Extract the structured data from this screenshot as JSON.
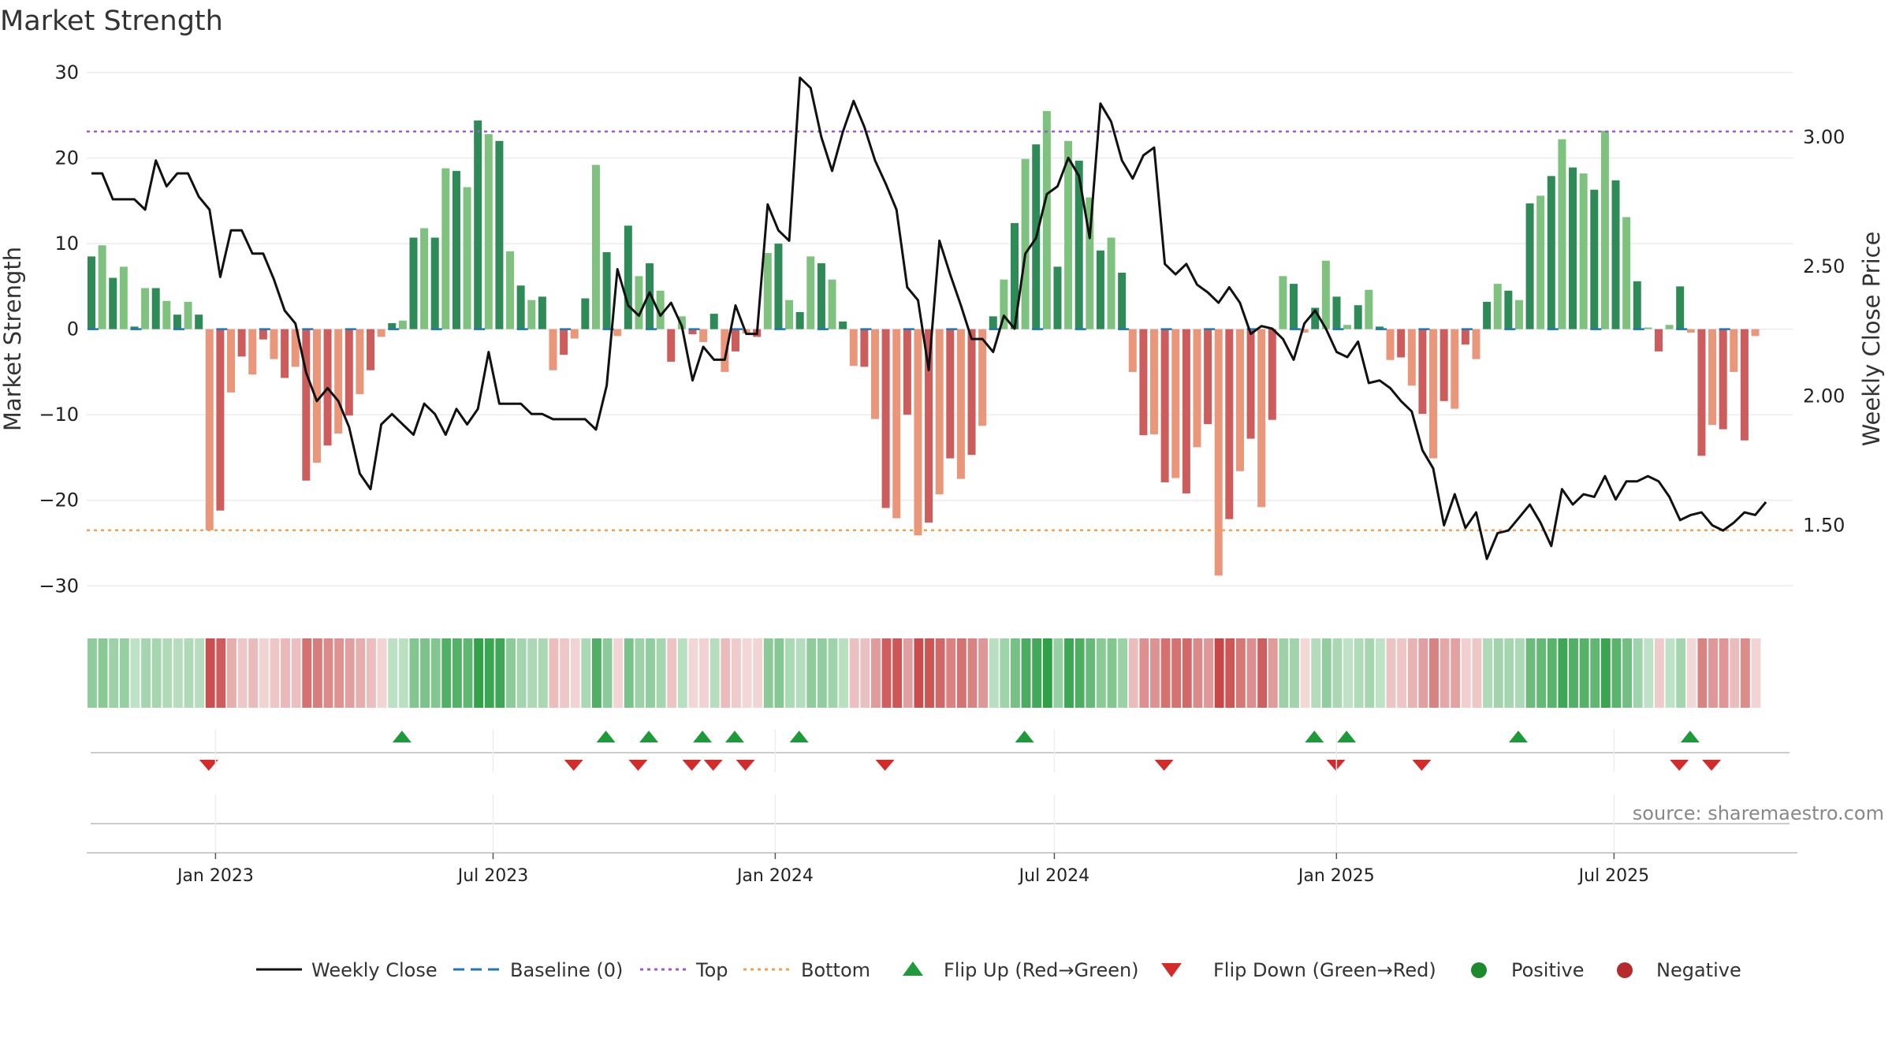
{
  "colors": {
    "pos_dark": "#2e8b57",
    "pos_light": "#7fc27f",
    "neg_dark": "#cd5c5c",
    "neg_light": "#e9967a",
    "top_line": "#9b59d0",
    "bottom_line": "#f0a050",
    "baseline": "#1f77b4",
    "price_line": "#111111",
    "flip_up": "#1e9a3a",
    "flip_down": "#d42a2a",
    "positive_dot": "#1e8a2e",
    "negative_dot": "#b52a2a"
  },
  "chart_data": {
    "type": "bar",
    "title": "Market Strength",
    "ylabel_left": "Market Strength",
    "ylabel_right": "Weekly Close Price",
    "ylim_left": [
      -32,
      30
    ],
    "ylim_right": [
      1.2,
      3.25
    ],
    "yticks_left": [
      30,
      20,
      10,
      0,
      -10,
      -20,
      -30
    ],
    "yticks_left_labels": [
      "30",
      "20",
      "10",
      "0",
      "−10",
      "−20",
      "−30"
    ],
    "yticks_right": [
      3.0,
      2.5,
      2.0,
      1.5
    ],
    "yticks_right_labels": [
      "3.00",
      "2.50",
      "2.00",
      "1.50"
    ],
    "x_start": "2022-10-09",
    "x_end": "2025-10-26",
    "xticks": [
      {
        "date": "2023-01-01",
        "label": "Jan 2023"
      },
      {
        "date": "2023-07-01",
        "label": "Jul 2023"
      },
      {
        "date": "2024-01-01",
        "label": "Jan 2024"
      },
      {
        "date": "2024-07-01",
        "label": "Jul 2024"
      },
      {
        "date": "2025-01-01",
        "label": "Jan 2025"
      },
      {
        "date": "2025-07-01",
        "label": "Jul 2025"
      }
    ],
    "top_level": 23.1,
    "bottom_level": -23.5,
    "week_start": "2022-10-09",
    "strength": [
      8.5,
      9.8,
      6.0,
      7.3,
      0.3,
      4.8,
      4.8,
      3.3,
      1.7,
      3.2,
      1.7,
      -23.5,
      -21.2,
      -7.4,
      -3.2,
      -5.3,
      -1.2,
      -3.5,
      -5.7,
      -4.4,
      -17.7,
      -15.6,
      -13.6,
      -12.2,
      -10.1,
      -7.6,
      -4.8,
      -0.9,
      0.7,
      1.0,
      10.7,
      11.8,
      10.7,
      18.8,
      18.5,
      16.6,
      24.4,
      22.8,
      22.0,
      9.1,
      5.1,
      3.4,
      3.8,
      -4.8,
      -3.0,
      -1.1,
      3.6,
      19.2,
      9.0,
      -0.8,
      12.1,
      6.2,
      7.7,
      4.5,
      -3.8,
      1.5,
      -0.6,
      -1.5,
      1.8,
      -5.0,
      -2.6,
      -0.5,
      -0.9,
      8.9,
      10.0,
      3.4,
      2.0,
      8.5,
      7.7,
      5.8,
      0.9,
      -4.3,
      -4.4,
      -10.5,
      -20.9,
      -22.1,
      -10.0,
      -24.1,
      -22.6,
      -19.3,
      -15.1,
      -17.5,
      -14.7,
      -11.3,
      1.5,
      5.8,
      12.4,
      19.9,
      21.6,
      25.5,
      7.3,
      22.0,
      19.7,
      15.4,
      9.2,
      10.7,
      6.6,
      -5.0,
      -12.4,
      -12.3,
      -17.9,
      -17.4,
      -19.2,
      -13.8,
      -11.1,
      -28.8,
      -22.2,
      -16.6,
      -12.8,
      -20.8,
      -10.6,
      6.2,
      5.3,
      -0.4,
      2.5,
      8.0,
      3.8,
      0.5,
      2.8,
      4.6,
      0.3,
      -3.6,
      -3.3,
      -6.6,
      -9.9,
      -15.1,
      -8.4,
      -9.3,
      -1.8,
      -3.5,
      3.2,
      5.3,
      4.5,
      3.4,
      14.7,
      15.6,
      17.9,
      22.2,
      18.9,
      18.2,
      16.3,
      23.2,
      17.4,
      13.1,
      5.6,
      0.2,
      -2.6,
      0.5,
      5.0,
      -0.4,
      -14.8,
      -11.2,
      -11.7,
      -5.0,
      -13.0,
      -0.8
    ],
    "weekly_close": [
      2.86,
      2.86,
      2.76,
      2.76,
      2.76,
      2.72,
      2.91,
      2.81,
      2.86,
      2.86,
      2.77,
      2.72,
      2.46,
      2.64,
      2.64,
      2.55,
      2.55,
      2.45,
      2.33,
      2.28,
      2.09,
      1.98,
      2.03,
      1.98,
      1.88,
      1.7,
      1.64,
      1.89,
      1.93,
      1.89,
      1.85,
      1.97,
      1.93,
      1.85,
      1.95,
      1.89,
      1.95,
      2.17,
      1.97,
      1.97,
      1.97,
      1.93,
      1.93,
      1.91,
      1.91,
      1.91,
      1.91,
      1.87,
      2.04,
      2.49,
      2.35,
      2.31,
      2.4,
      2.31,
      2.36,
      2.27,
      2.06,
      2.19,
      2.14,
      2.14,
      2.35,
      2.24,
      2.24,
      2.74,
      2.64,
      2.6,
      3.23,
      3.19,
      3.0,
      2.87,
      3.02,
      3.14,
      3.04,
      2.91,
      2.82,
      2.72,
      2.42,
      2.37,
      2.1,
      2.6,
      2.47,
      2.35,
      2.22,
      2.22,
      2.17,
      2.31,
      2.26,
      2.55,
      2.61,
      2.78,
      2.81,
      2.92,
      2.85,
      2.61,
      3.13,
      3.06,
      2.91,
      2.84,
      2.93,
      2.96,
      2.51,
      2.47,
      2.51,
      2.43,
      2.4,
      2.36,
      2.42,
      2.36,
      2.24,
      2.27,
      2.26,
      2.22,
      2.14,
      2.28,
      2.33,
      2.26,
      2.17,
      2.15,
      2.21,
      2.05,
      2.06,
      2.03,
      1.98,
      1.94,
      1.79,
      1.72,
      1.5,
      1.62,
      1.49,
      1.55,
      1.37,
      1.47,
      1.48,
      1.53,
      1.58,
      1.51,
      1.42,
      1.64,
      1.58,
      1.62,
      1.61,
      1.69,
      1.6,
      1.67,
      1.67,
      1.69,
      1.67,
      1.61,
      1.52,
      1.54,
      1.55,
      1.5,
      1.48,
      1.51,
      1.55,
      1.54,
      1.59
    ],
    "flip_up_weeks": [
      29,
      48,
      52,
      57,
      60,
      66,
      87,
      114,
      117,
      133,
      149
    ],
    "flip_down_weeks": [
      11,
      45,
      51,
      56,
      58,
      61,
      74,
      100,
      116,
      124,
      148,
      151
    ]
  },
  "source_text": "source: sharemaestro.com",
  "legend": {
    "weekly_close": "Weekly Close",
    "baseline": "Baseline (0)",
    "top": "Top",
    "bottom": "Bottom",
    "flip_up": "Flip Up (Red→Green)",
    "flip_down": "Flip Down (Green→Red)",
    "positive": "Positive",
    "negative": "Negative"
  }
}
